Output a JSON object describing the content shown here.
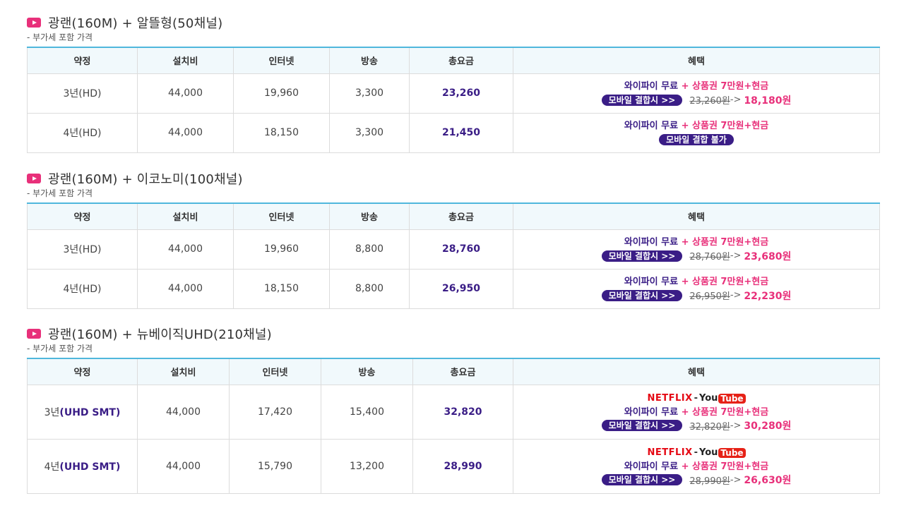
{
  "columns": [
    "약정",
    "설치비",
    "인터넷",
    "방송",
    "총요금",
    "혜택"
  ],
  "sections": [
    {
      "title": "광랜(160M) + 알뜰형(50채널)",
      "note": "- 부가세 포함 가격",
      "rows": [
        {
          "term": "3년(HD)",
          "install": "44,000",
          "internet": "19,960",
          "broadcast": "3,300",
          "total": "23,260",
          "benefit": {
            "wifi": "와이파이 무료",
            "plus": "+",
            "gift": "상품권 7만원+현금",
            "pill": "모바일 결합시 >>",
            "old": "23,260원",
            "arrow": "->",
            "new": "18,180원"
          }
        },
        {
          "term": "4년(HD)",
          "install": "44,000",
          "internet": "18,150",
          "broadcast": "3,300",
          "total": "21,450",
          "benefit": {
            "wifi": "와이파이 무료",
            "plus": "+",
            "gift": "상품권 7만원+현금",
            "pill": "모바일 결합 불가"
          }
        }
      ]
    },
    {
      "title": "광랜(160M) + 이코노미(100채널)",
      "note": "- 부가세 포함 가격",
      "rows": [
        {
          "term": "3년(HD)",
          "install": "44,000",
          "internet": "19,960",
          "broadcast": "8,800",
          "total": "28,760",
          "benefit": {
            "wifi": "와이파이 무료",
            "plus": "+",
            "gift": "상품권 7만원+현금",
            "pill": "모바일 결합시 >>",
            "old": "28,760원",
            "arrow": "->",
            "new": "23,680원"
          }
        },
        {
          "term": "4년(HD)",
          "install": "44,000",
          "internet": "18,150",
          "broadcast": "8,800",
          "total": "26,950",
          "benefit": {
            "wifi": "와이파이 무료",
            "plus": "+",
            "gift": "상품권 7만원+현금",
            "pill": "모바일 결합시 >>",
            "old": "26,950원",
            "arrow": "->",
            "new": "22,230원"
          }
        }
      ]
    },
    {
      "title": "광랜(160M) + 뉴베이직UHD(210채널)",
      "note": "- 부가세 포함 가격",
      "rows": [
        {
          "term_prefix": "3년",
          "term_uhd": "(UHD SMT)",
          "install": "44,000",
          "internet": "17,420",
          "broadcast": "15,400",
          "total": "32,820",
          "benefit": {
            "netflix": "NETFLIX",
            "dash": "-",
            "you": "You",
            "tube": "Tube",
            "wifi": "와이파이 무료",
            "plus": "+",
            "gift": "상품권 7만원+현금",
            "pill": "모바일 결합시 >>",
            "old": "32,820원",
            "arrow": "->",
            "new": "30,280원"
          }
        },
        {
          "term_prefix": "4년",
          "term_uhd": "(UHD SMT)",
          "install": "44,000",
          "internet": "15,790",
          "broadcast": "13,200",
          "total": "28,990",
          "benefit": {
            "netflix": "NETFLIX",
            "dash": "-",
            "you": "You",
            "tube": "Tube",
            "wifi": "와이파이 무료",
            "plus": "+",
            "gift": "상품권 7만원+현금",
            "pill": "모바일 결합시 >>",
            "old": "28,990원",
            "arrow": "->",
            "new": "26,630원"
          }
        }
      ]
    }
  ],
  "colors": {
    "accent_pink": "#e8307a",
    "accent_purple": "#3a1d86",
    "header_line": "#4fb7dc"
  }
}
